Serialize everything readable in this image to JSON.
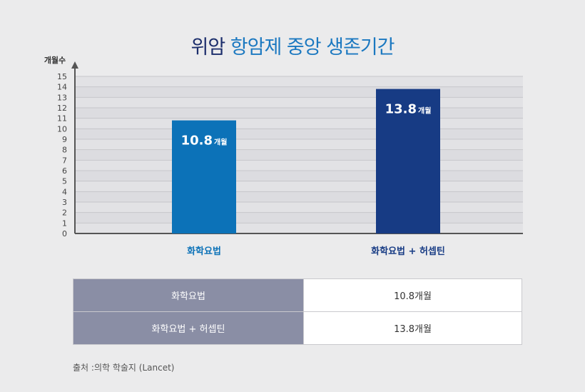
{
  "title": {
    "dark": "위암",
    "blue": "항암제 중앙 생존기간"
  },
  "chart_data": {
    "type": "bar",
    "ylabel": "개월수",
    "ylim": [
      0,
      15
    ],
    "yticks": [
      0,
      1,
      2,
      3,
      4,
      5,
      6,
      7,
      8,
      9,
      10,
      11,
      12,
      13,
      14,
      15
    ],
    "grid": true,
    "categories": [
      "화학요법",
      "화학요법 + 허셉틴"
    ],
    "values": [
      10.8,
      13.8
    ],
    "value_labels": [
      "10.8",
      "13.8"
    ],
    "unit": "개월",
    "colors": [
      "#0c72b8",
      "#173b84"
    ]
  },
  "table": {
    "rows": [
      {
        "label": "화학요법",
        "value": "10.8개월"
      },
      {
        "label": "화학요법 + 허셉틴",
        "value": "13.8개월"
      }
    ]
  },
  "source": "출처 :의학 학술지 (Lancet)"
}
